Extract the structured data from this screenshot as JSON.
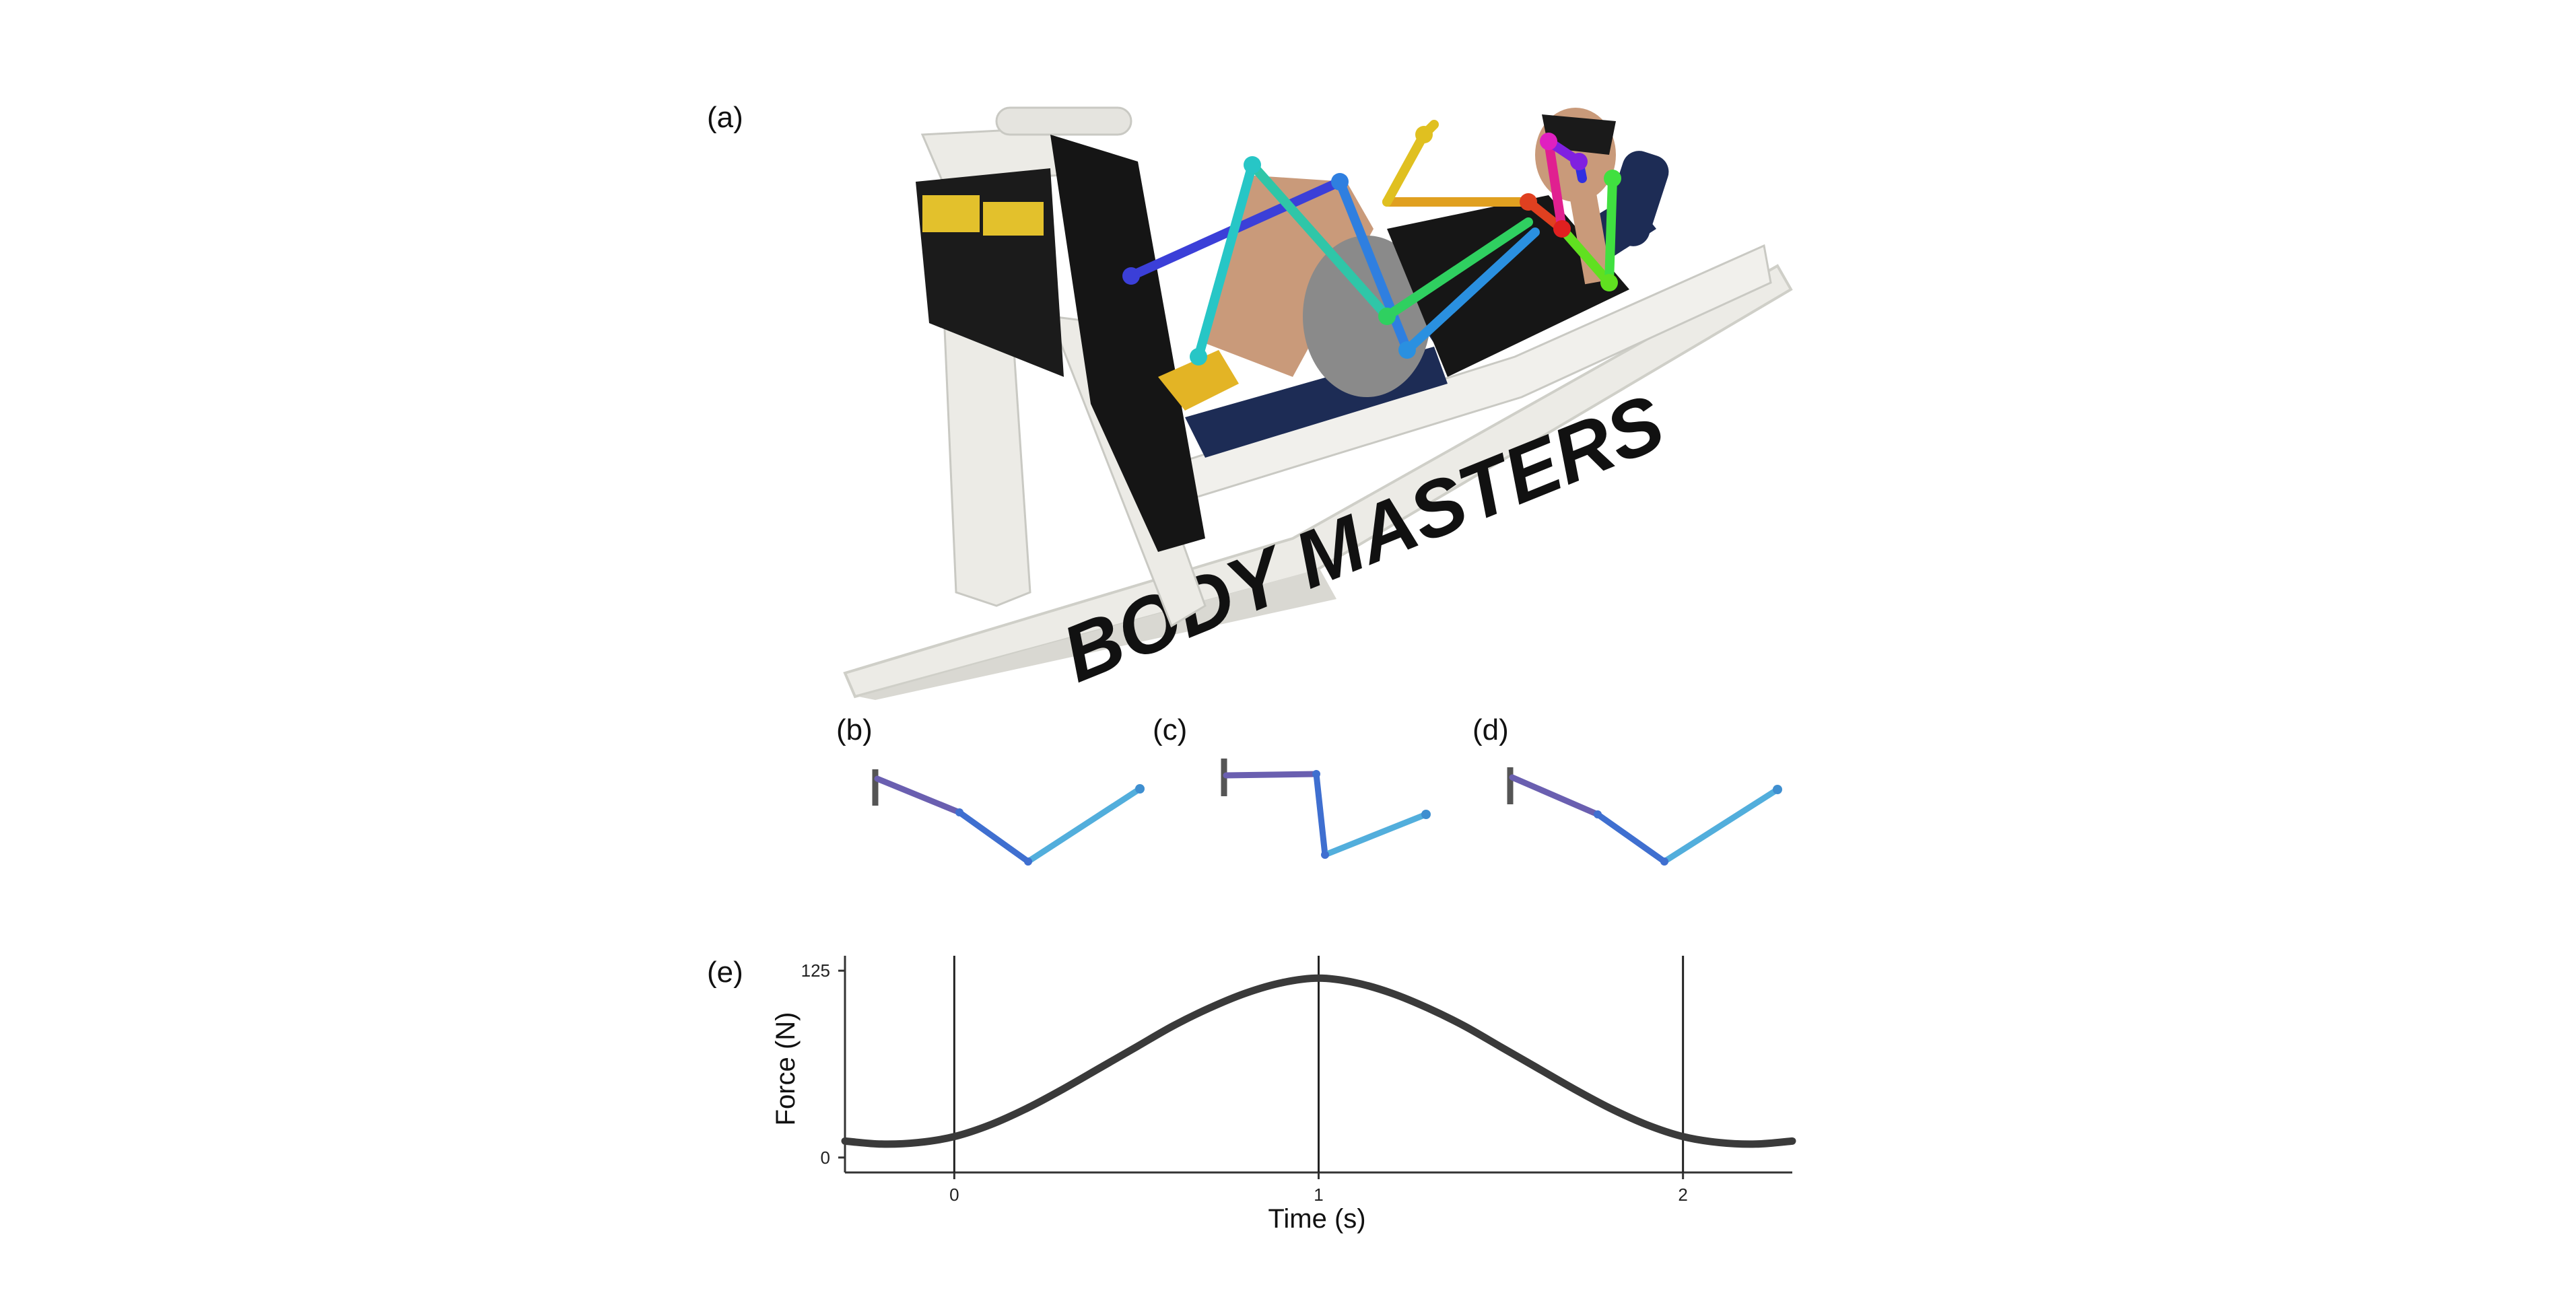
{
  "panels": {
    "a": "(a)",
    "b": "(b)",
    "c": "(c)",
    "d": "(d)",
    "e": "(e)"
  },
  "photo": {
    "machine_text": "BODY MASTERS",
    "colors": {
      "frame": "#ecebe6",
      "seat": "#1d2c55",
      "plate": "#151515",
      "yellow": "#e3c12c",
      "shorts": "#8a8a8a",
      "shirt": "#161616",
      "skin": "#c99a7a"
    }
  },
  "stick_figures": [
    {
      "id": "b",
      "colors": [
        "#6a5fb0",
        "#3f6fd0",
        "#52aedc"
      ]
    },
    {
      "id": "c",
      "colors": [
        "#6a5fb0",
        "#3f6fd0",
        "#52aedc"
      ]
    },
    {
      "id": "d",
      "colors": [
        "#6a5fb0",
        "#3f6fd0",
        "#52aedc"
      ]
    }
  ],
  "chart_data": {
    "type": "line",
    "xlabel": "Time (s)",
    "ylabel": "Force (N)",
    "xlim": [
      -0.3,
      2.3
    ],
    "ylim": [
      -10,
      135
    ],
    "xticks": [
      0,
      1,
      2
    ],
    "yticks": [
      0,
      125
    ],
    "vlines": [
      0,
      1,
      2
    ],
    "grid": false,
    "series": [
      {
        "color": "#3a3a3a",
        "x": [
          -0.3,
          -0.2,
          -0.1,
          0,
          0.1,
          0.2,
          0.3,
          0.4,
          0.5,
          0.6,
          0.7,
          0.8,
          0.9,
          1.0,
          1.1,
          1.2,
          1.3,
          1.4,
          1.5,
          1.6,
          1.7,
          1.8,
          1.9,
          2.0,
          2.1,
          2.2,
          2.3
        ],
        "y": [
          11,
          9,
          10,
          14,
          22,
          33,
          46,
          60,
          74,
          88,
          100,
          110,
          117,
          120,
          117,
          110,
          100,
          88,
          74,
          60,
          46,
          33,
          22,
          14,
          10,
          9,
          11
        ]
      }
    ]
  }
}
